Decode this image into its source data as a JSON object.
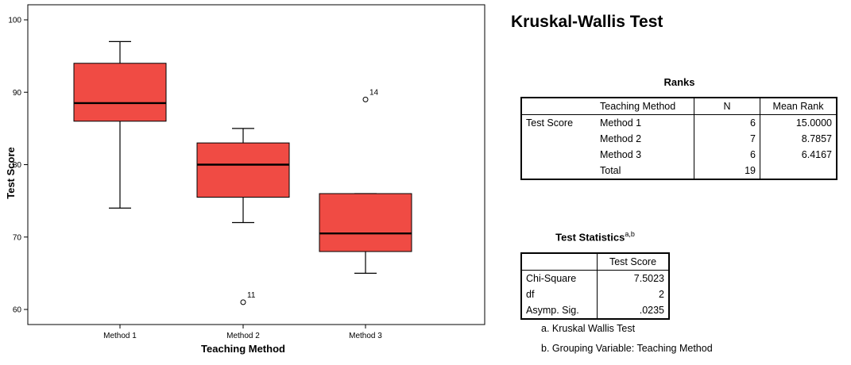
{
  "chart_data": {
    "type": "boxplot",
    "xlabel": "Teaching Method",
    "ylabel": "Test Score",
    "ylim": [
      58,
      102
    ],
    "yticks": [
      60,
      70,
      80,
      90,
      100
    ],
    "grid": false,
    "box_color": "#f04b44",
    "categories": [
      "Method 1",
      "Method 2",
      "Method 3"
    ],
    "boxes": [
      {
        "category": "Method 1",
        "whisker_low": 74,
        "q1": 86,
        "median": 88.5,
        "q3": 94,
        "whisker_high": 97,
        "outliers": []
      },
      {
        "category": "Method 2",
        "whisker_low": 72,
        "q1": 75.5,
        "median": 80,
        "q3": 83,
        "whisker_high": 85,
        "outliers": [
          {
            "value": 61,
            "label": "11"
          }
        ]
      },
      {
        "category": "Method 3",
        "whisker_low": 65,
        "q1": 68,
        "median": 70.5,
        "q3": 76,
        "whisker_high": 76,
        "outliers": [
          {
            "value": 89,
            "label": "14"
          }
        ]
      }
    ]
  },
  "title": "Kruskal-Wallis Test",
  "ranks": {
    "caption": "Ranks",
    "headers": [
      "",
      "Teaching Method",
      "N",
      "Mean Rank"
    ],
    "row_label": "Test Score",
    "rows": [
      {
        "group": "Method 1",
        "n": "6",
        "mean_rank": "15.0000"
      },
      {
        "group": "Method 2",
        "n": "7",
        "mean_rank": "8.7857"
      },
      {
        "group": "Method 3",
        "n": "6",
        "mean_rank": "6.4167"
      },
      {
        "group": "Total",
        "n": "19",
        "mean_rank": ""
      }
    ]
  },
  "test_statistics": {
    "caption": "Test Statistics",
    "caption_sup": "a,b",
    "column": "Test Score",
    "rows": [
      {
        "label": "Chi-Square",
        "value": "7.5023"
      },
      {
        "label": "df",
        "value": "2"
      },
      {
        "label": "Asymp. Sig.",
        "value": ".0235"
      }
    ],
    "footnotes": [
      "a. Kruskal Wallis Test",
      "b. Grouping Variable: Teaching Method"
    ]
  }
}
